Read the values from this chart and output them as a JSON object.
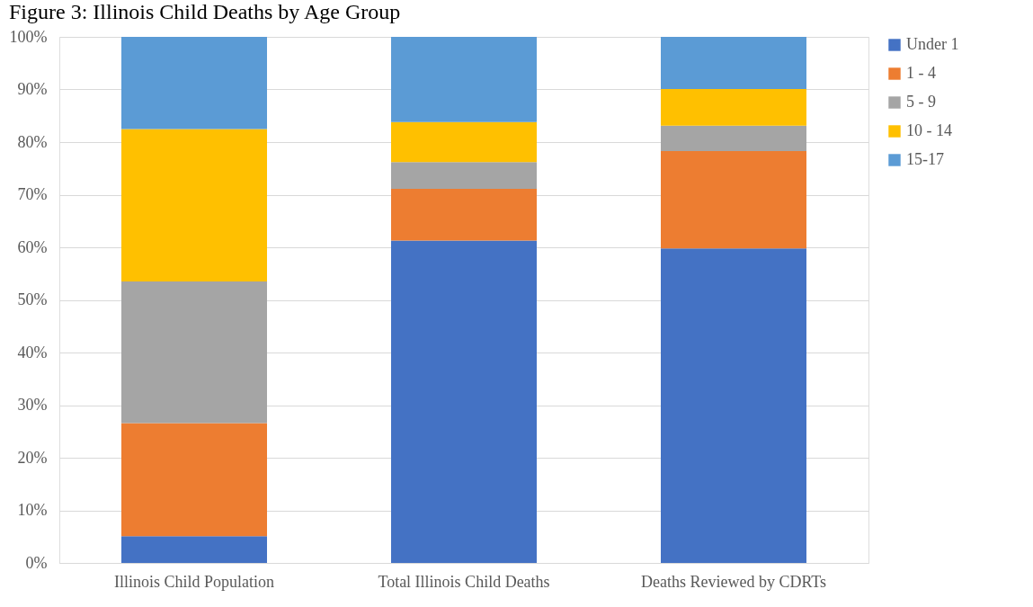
{
  "chart_data": {
    "type": "bar",
    "title": "Figure 3: Illinois Child Deaths by Age Group",
    "categories": [
      "Illinois Child Population",
      "Total Illinois Child Deaths",
      "Deaths Reviewed by CDRTs"
    ],
    "stacked": true,
    "series": [
      {
        "name": "Under 1",
        "color": "#4472c4",
        "values": [
          5.1,
          61.3,
          59.8
        ]
      },
      {
        "name": "1 - 4",
        "color": "#ed7d31",
        "values": [
          21.5,
          9.8,
          18.5
        ]
      },
      {
        "name": "5 - 9",
        "color": "#a5a5a5",
        "values": [
          26.9,
          5.1,
          4.8
        ]
      },
      {
        "name": "10 - 14",
        "color": "#ffc000",
        "values": [
          29.0,
          7.6,
          7.0
        ]
      },
      {
        "name": "15-17",
        "color": "#5b9bd5",
        "values": [
          17.5,
          16.2,
          9.9
        ]
      }
    ],
    "ylim": [
      0,
      100
    ],
    "yticks": [
      {
        "value": 0,
        "label": "0%"
      },
      {
        "value": 10,
        "label": "10%"
      },
      {
        "value": 20,
        "label": "20%"
      },
      {
        "value": 30,
        "label": "30%"
      },
      {
        "value": 40,
        "label": "40%"
      },
      {
        "value": 50,
        "label": "50%"
      },
      {
        "value": 60,
        "label": "60%"
      },
      {
        "value": 70,
        "label": "70%"
      },
      {
        "value": 80,
        "label": "80%"
      },
      {
        "value": 90,
        "label": "90%"
      },
      {
        "value": 100,
        "label": "100%"
      }
    ],
    "grid": "y",
    "legend": "right"
  }
}
